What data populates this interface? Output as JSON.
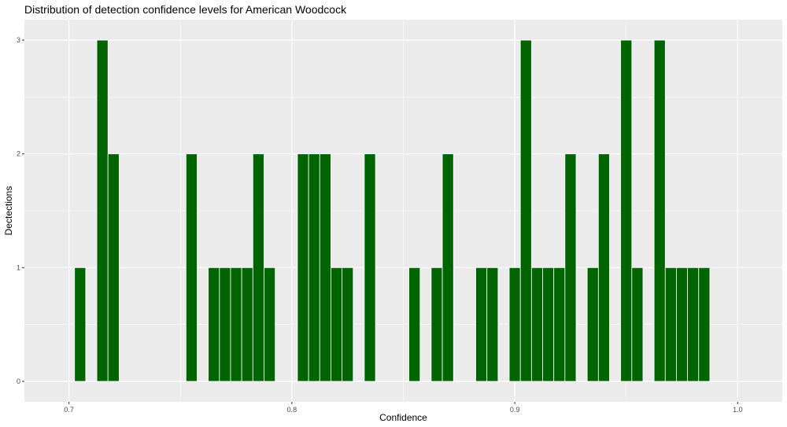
{
  "chart_data": {
    "type": "bar",
    "title": "Distribution of detection confidence levels for American Woodcock",
    "xlabel": "Confidence",
    "ylabel": "Dectections",
    "xlim": [
      0.68,
      1.02
    ],
    "ylim": [
      -0.18,
      3.18
    ],
    "x_ticks": [
      0.7,
      0.8,
      0.9,
      1.0
    ],
    "x_tick_labels": [
      "0.7",
      "0.8",
      "0.9",
      "1.0"
    ],
    "y_ticks": [
      0,
      1,
      2,
      3
    ],
    "y_tick_labels": [
      "0",
      "1",
      "2",
      "3"
    ],
    "bin_width": 0.005,
    "grid": true,
    "panel_background": "#ebebeb",
    "grid_color": "#ffffff",
    "bar_color": "#006400",
    "bar_outline": "#ffffff",
    "bins": [
      {
        "x": 0.705,
        "count": 1
      },
      {
        "x": 0.715,
        "count": 3
      },
      {
        "x": 0.72,
        "count": 2
      },
      {
        "x": 0.755,
        "count": 2
      },
      {
        "x": 0.765,
        "count": 1
      },
      {
        "x": 0.77,
        "count": 1
      },
      {
        "x": 0.775,
        "count": 1
      },
      {
        "x": 0.78,
        "count": 1
      },
      {
        "x": 0.785,
        "count": 2
      },
      {
        "x": 0.79,
        "count": 1
      },
      {
        "x": 0.805,
        "count": 2
      },
      {
        "x": 0.81,
        "count": 2
      },
      {
        "x": 0.815,
        "count": 2
      },
      {
        "x": 0.82,
        "count": 1
      },
      {
        "x": 0.825,
        "count": 1
      },
      {
        "x": 0.835,
        "count": 2
      },
      {
        "x": 0.855,
        "count": 1
      },
      {
        "x": 0.865,
        "count": 1
      },
      {
        "x": 0.87,
        "count": 2
      },
      {
        "x": 0.885,
        "count": 1
      },
      {
        "x": 0.89,
        "count": 1
      },
      {
        "x": 0.9,
        "count": 1
      },
      {
        "x": 0.905,
        "count": 3
      },
      {
        "x": 0.91,
        "count": 1
      },
      {
        "x": 0.915,
        "count": 1
      },
      {
        "x": 0.92,
        "count": 1
      },
      {
        "x": 0.925,
        "count": 2
      },
      {
        "x": 0.935,
        "count": 1
      },
      {
        "x": 0.94,
        "count": 2
      },
      {
        "x": 0.95,
        "count": 3
      },
      {
        "x": 0.955,
        "count": 1
      },
      {
        "x": 0.965,
        "count": 3
      },
      {
        "x": 0.97,
        "count": 1
      },
      {
        "x": 0.975,
        "count": 1
      },
      {
        "x": 0.98,
        "count": 1
      },
      {
        "x": 0.985,
        "count": 1
      }
    ]
  }
}
